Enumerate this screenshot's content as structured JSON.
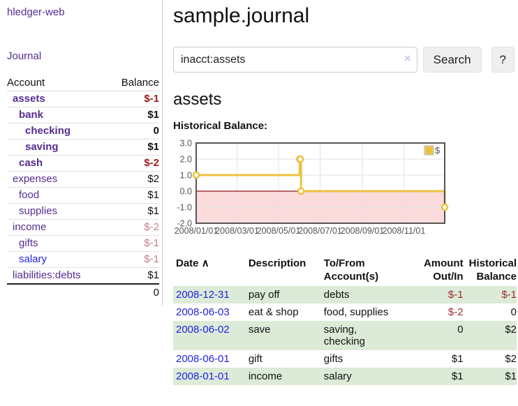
{
  "app": {
    "brand": "hledger-web"
  },
  "sidebar": {
    "journal_link": "Journal",
    "accounts_table": {
      "account_header": "Account",
      "balance_header": "Balance",
      "rows": [
        {
          "name": "assets",
          "balance": "$-1",
          "indent": 1,
          "bold": true,
          "neg": "strong"
        },
        {
          "name": "bank",
          "balance": "$1",
          "indent": 2,
          "bold": true
        },
        {
          "name": "checking",
          "balance": "0",
          "indent": 3,
          "bold": true
        },
        {
          "name": "saving",
          "balance": "$1",
          "indent": 3,
          "bold": true
        },
        {
          "name": "cash",
          "balance": "$-2",
          "indent": 2,
          "bold": true,
          "neg": "strong"
        },
        {
          "name": "expenses",
          "balance": "$2",
          "indent": 1
        },
        {
          "name": "food",
          "balance": "$1",
          "indent": 2
        },
        {
          "name": "supplies",
          "balance": "$1",
          "indent": 2
        },
        {
          "name": "income",
          "balance": "$-2",
          "indent": 1,
          "neg": "soft"
        },
        {
          "name": "gifts",
          "balance": "$-1",
          "indent": 2,
          "neg": "soft"
        },
        {
          "name": "salary",
          "balance": "$-1",
          "indent": 2,
          "neg": "soft",
          "link_style": "unvisited"
        },
        {
          "name": "liabilities:debts",
          "balance": "$1",
          "indent": 1
        }
      ],
      "total": "0"
    }
  },
  "header": {
    "title": "sample.journal"
  },
  "search": {
    "value": "inacct:assets",
    "clear_icon": "×",
    "button_label": "Search",
    "help_label": "?"
  },
  "account_page": {
    "title": "assets",
    "chart_label": "Historical Balance:"
  },
  "chart_data": {
    "type": "line",
    "step": true,
    "title": "Historical Balance",
    "series": [
      {
        "name": "$",
        "color": "#edc240",
        "points": [
          [
            "2008/01/01",
            1
          ],
          [
            "2008/06/01",
            2
          ],
          [
            "2008/06/02",
            2
          ],
          [
            "2008/06/03",
            0
          ],
          [
            "2008/12/31",
            -1
          ]
        ]
      }
    ],
    "ylim": [
      -2,
      3
    ],
    "yticks": [
      3.0,
      2.0,
      1.0,
      0.0,
      -1.0,
      -2.0
    ],
    "ytick_labels": [
      "3.0",
      "2.0",
      "1.0",
      "0.0",
      "-1.0",
      "-2.0"
    ],
    "xtick_labels": [
      "2008/01/01",
      "2008/03/01",
      "2008/05/01",
      "2008/07/01",
      "2008/09/01",
      "2008/11/01"
    ],
    "legend": "$",
    "legend_position": "top-right",
    "grid": true,
    "negative_region_color": "#fbdbdb",
    "zero_line_color": "#8b1414",
    "border_color": "#555555",
    "tick_text_color": "#545454"
  },
  "register_table": {
    "headers": {
      "date": "Date",
      "sort_icon": "∧",
      "description": "Description",
      "to_from": "To/From Account(s)",
      "amount": "Amount Out/In",
      "balance": "Historical Balance"
    },
    "rows": [
      {
        "date": "2008-12-31",
        "description": "pay off",
        "to_from": "debts",
        "amount": "$-1",
        "balance": "$-1"
      },
      {
        "date": "2008-06-03",
        "description": "eat & shop",
        "to_from": "food, supplies",
        "amount": "$-2",
        "balance": "0"
      },
      {
        "date": "2008-06-02",
        "description": "save",
        "to_from": "saving,\nchecking",
        "amount": "0",
        "balance": "$2"
      },
      {
        "date": "2008-06-01",
        "description": "gift",
        "to_from": "gifts",
        "amount": "$1",
        "balance": "$2"
      },
      {
        "date": "2008-01-01",
        "description": "income",
        "to_from": "salary",
        "amount": "$1",
        "balance": "$1"
      }
    ]
  }
}
